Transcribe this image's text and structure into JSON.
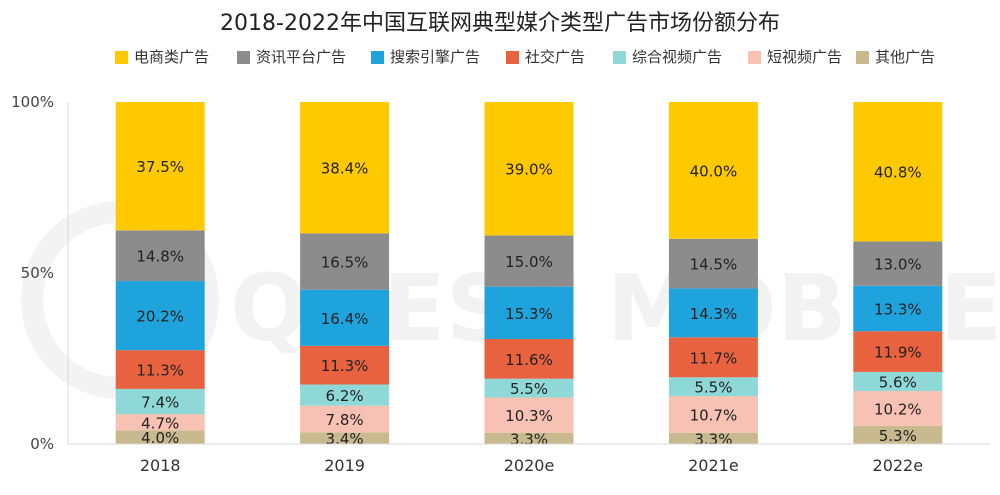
{
  "colors": {
    "background": "#ffffff",
    "axis": "#d9d9d9",
    "grid": "#f0f0f0",
    "label_text": "#222222",
    "watermark": "#f2f2f2"
  },
  "watermark_text": "QUEST MOBILE",
  "chart_data": {
    "type": "bar",
    "stacked": true,
    "percent_stacked": true,
    "title": "2018-2022年中国互联网典型媒介类型广告市场份额分布",
    "categories": [
      "2018",
      "2019",
      "2020e",
      "2021e",
      "2022e"
    ],
    "ylim": [
      0,
      100
    ],
    "yticks": [
      "0%",
      "50%",
      "100%"
    ],
    "legend_position": "top",
    "grid": false,
    "series": [
      {
        "name": "其他广告",
        "color": "#c8b98f",
        "values": [
          4.0,
          3.4,
          3.3,
          3.3,
          5.3
        ],
        "labels": [
          "4.0%",
          "3.4%",
          "3.3%",
          "3.3%",
          "5.3%"
        ]
      },
      {
        "name": "短视频广告",
        "color": "#f7c1b3",
        "values": [
          4.7,
          7.8,
          10.3,
          10.7,
          10.2
        ],
        "labels": [
          "4.7%",
          "7.8%",
          "10.3%",
          "10.7%",
          "10.2%"
        ]
      },
      {
        "name": "综合视频广告",
        "color": "#8fd8d8",
        "values": [
          7.4,
          6.2,
          5.5,
          5.5,
          5.6
        ],
        "labels": [
          "7.4%",
          "6.2%",
          "5.5%",
          "5.5%",
          "5.6%"
        ]
      },
      {
        "name": "社交广告",
        "color": "#e8623f",
        "values": [
          11.3,
          11.3,
          11.6,
          11.7,
          11.9
        ],
        "labels": [
          "11.3%",
          "11.3%",
          "11.6%",
          "11.7%",
          "11.9%"
        ]
      },
      {
        "name": "搜索引擎广告",
        "color": "#1fa3dc",
        "values": [
          20.2,
          16.4,
          15.3,
          14.3,
          13.3
        ],
        "labels": [
          "20.2%",
          "16.4%",
          "15.3%",
          "14.3%",
          "13.3%"
        ]
      },
      {
        "name": "资讯平台广告",
        "color": "#8c8c8c",
        "values": [
          14.8,
          16.5,
          15.0,
          14.5,
          13.0
        ],
        "labels": [
          "14.8%",
          "16.5%",
          "15.0%",
          "14.5%",
          "13.0%"
        ]
      },
      {
        "name": "电商类广告",
        "color": "#ffc900",
        "values": [
          37.5,
          38.4,
          39.0,
          40.0,
          40.8
        ],
        "labels": [
          "37.5%",
          "38.4%",
          "39.0%",
          "40.0%",
          "40.8%"
        ]
      }
    ],
    "legend_order": [
      "电商类广告",
      "资讯平台广告",
      "搜索引擎广告",
      "社交广告",
      "综合视频广告",
      "短视频广告",
      "其他广告"
    ]
  }
}
